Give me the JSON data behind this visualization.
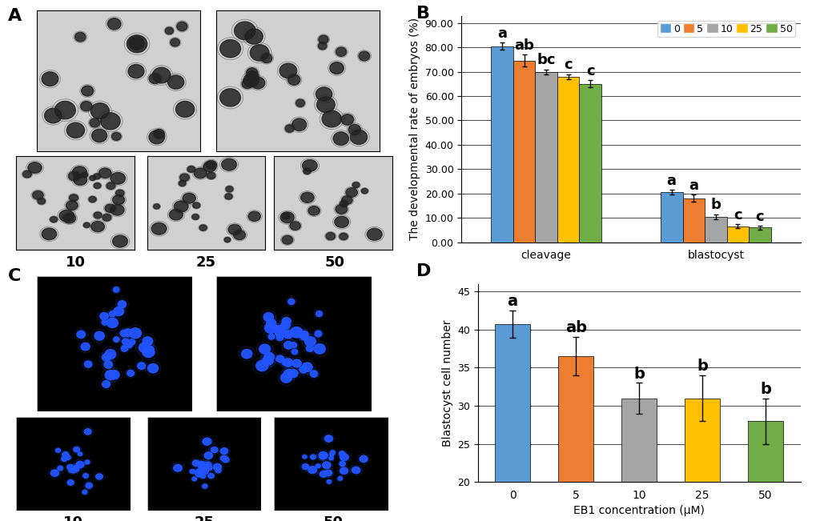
{
  "panel_B": {
    "cleavage_values": [
      80.5,
      74.5,
      70.0,
      68.0,
      65.0
    ],
    "cleavage_errors": [
      1.5,
      2.5,
      1.0,
      1.0,
      1.5
    ],
    "blastocyst_values": [
      20.5,
      18.0,
      10.5,
      6.5,
      6.0
    ],
    "blastocyst_errors": [
      1.0,
      1.5,
      1.0,
      0.8,
      0.8
    ],
    "cleavage_labels": [
      "a",
      "ab",
      "bc",
      "c",
      "c"
    ],
    "blastocyst_labels": [
      "a",
      "a",
      "b",
      "c",
      "c"
    ],
    "colors": [
      "#5B9BD5",
      "#ED7D31",
      "#A5A5A5",
      "#FFC000",
      "#70AD47"
    ],
    "concentrations": [
      0,
      5,
      10,
      25,
      50
    ],
    "ylabel": "The developmental rate of embryos (%)",
    "yticks": [
      0.0,
      10.0,
      20.0,
      30.0,
      40.0,
      50.0,
      60.0,
      70.0,
      80.0,
      90.0
    ],
    "ylim": [
      0,
      93
    ],
    "legend_labels": [
      "0",
      "5",
      "10",
      "25",
      "50"
    ],
    "xticklabels": [
      "cleavage",
      "blastocyst"
    ]
  },
  "panel_D": {
    "values": [
      40.7,
      36.5,
      31.0,
      31.0,
      28.0
    ],
    "errors": [
      1.8,
      2.5,
      2.0,
      3.0,
      3.0
    ],
    "labels": [
      "a",
      "ab",
      "b",
      "b",
      "b"
    ],
    "colors": [
      "#5B9BD5",
      "#ED7D31",
      "#A5A5A5",
      "#FFC000",
      "#70AD47"
    ],
    "concentrations": [
      "0",
      "5",
      "10",
      "25",
      "50"
    ],
    "ylabel": "Blastocyst cell number",
    "xlabel": "EB1 concentration (μM)",
    "ylim": [
      20,
      46
    ],
    "yticks": [
      20,
      25,
      30,
      35,
      40,
      45
    ]
  },
  "panel_labels_fontsize": 16,
  "axis_label_fontsize": 10,
  "tick_fontsize": 9,
  "sig_label_fontsize": 13,
  "legend_fontsize": 9,
  "sub_label_fontsize": 13
}
